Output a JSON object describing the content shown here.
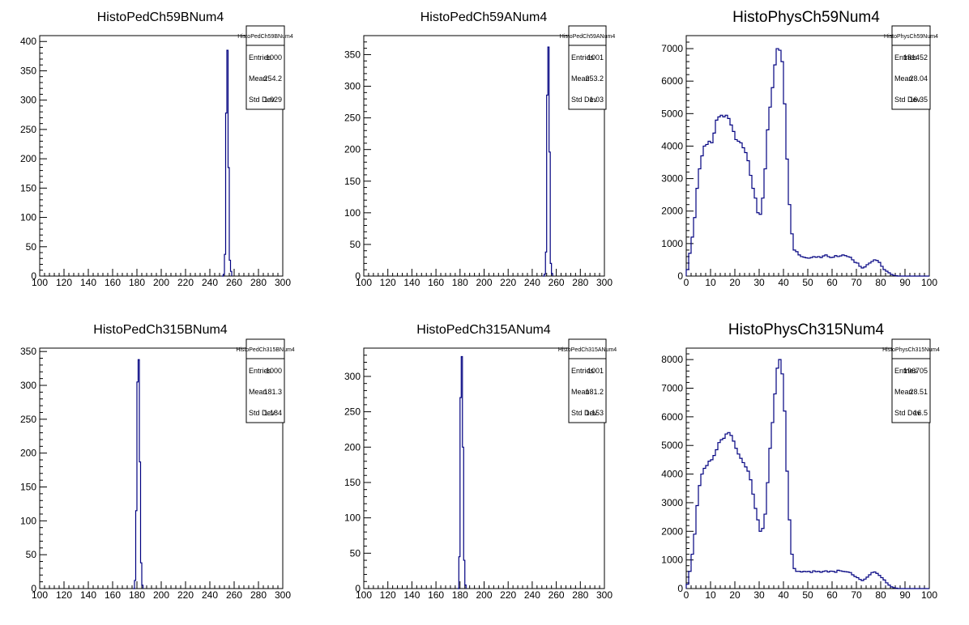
{
  "stats_labels": {
    "entries": "Entries",
    "mean": "Mean",
    "std": "Std Dev"
  },
  "colors": {
    "line": "#000080",
    "axis": "#000000"
  },
  "chart_data": [
    {
      "type": "histogram",
      "title": "HistoPedCh59BNum4",
      "stats": {
        "name": "HistoPedCh59BNum4",
        "entries": "1000",
        "mean": "254.2",
        "std": "1.029"
      },
      "xlim": [
        100,
        300
      ],
      "ylim": [
        0,
        410
      ],
      "xticks": [
        100,
        120,
        140,
        160,
        180,
        200,
        220,
        240,
        260,
        280,
        300
      ],
      "yticks": [
        0,
        50,
        100,
        150,
        200,
        250,
        300,
        350,
        400
      ],
      "bins": [
        [
          250,
          251,
          0
        ],
        [
          251,
          252,
          3
        ],
        [
          252,
          253,
          37
        ],
        [
          253,
          254,
          278
        ],
        [
          254,
          255,
          385
        ],
        [
          255,
          256,
          185
        ],
        [
          256,
          257,
          27
        ],
        [
          257,
          258,
          8
        ]
      ]
    },
    {
      "type": "histogram",
      "title": "HistoPedCh59ANum4",
      "stats": {
        "name": "HistoPedCh59ANum4",
        "entries": "1001",
        "mean": "253.2",
        "std": "1.03"
      },
      "xlim": [
        100,
        300
      ],
      "ylim": [
        0,
        380
      ],
      "xticks": [
        100,
        120,
        140,
        160,
        180,
        200,
        220,
        240,
        260,
        280,
        300
      ],
      "yticks": [
        0,
        50,
        100,
        150,
        200,
        250,
        300,
        350
      ],
      "bins": [
        [
          249,
          250,
          0
        ],
        [
          250,
          251,
          3
        ],
        [
          251,
          252,
          38
        ],
        [
          252,
          253,
          286
        ],
        [
          253,
          254,
          362
        ],
        [
          254,
          255,
          196
        ],
        [
          255,
          256,
          20
        ],
        [
          256,
          257,
          4
        ]
      ]
    },
    {
      "type": "histogram",
      "title": "HistoPhysCh59Num4",
      "stats": {
        "name": "HistoPhysCh59Num4",
        "entries": "181452",
        "mean": "28.04",
        "std": "16.35"
      },
      "xlim": [
        0,
        100
      ],
      "ylim": [
        0,
        7400
      ],
      "xticks": [
        0,
        10,
        20,
        30,
        40,
        50,
        60,
        70,
        80,
        90,
        100
      ],
      "yticks": [
        0,
        1000,
        2000,
        3000,
        4000,
        5000,
        6000,
        7000
      ],
      "binstart": 0,
      "binwidth": 1,
      "counts": [
        200,
        700,
        1200,
        1800,
        2700,
        3300,
        3700,
        4000,
        4050,
        4150,
        4100,
        4400,
        4800,
        4900,
        4950,
        4900,
        4950,
        4850,
        4650,
        4450,
        4200,
        4150,
        4100,
        3950,
        3800,
        3550,
        3100,
        2700,
        2400,
        1950,
        1900,
        2400,
        3300,
        4500,
        5200,
        5800,
        6500,
        7000,
        6950,
        6600,
        5300,
        3600,
        2200,
        1300,
        800,
        750,
        650,
        600,
        580,
        560,
        550,
        570,
        600,
        580,
        600,
        570,
        620,
        650,
        600,
        570,
        580,
        630,
        600,
        620,
        650,
        630,
        600,
        580,
        500,
        420,
        400,
        300,
        250,
        280,
        350,
        400,
        450,
        500,
        480,
        420,
        300,
        200,
        150,
        100,
        50,
        20,
        10,
        0,
        0,
        0,
        0,
        0,
        0,
        0,
        0,
        0,
        0,
        0,
        0,
        0
      ]
    },
    {
      "type": "histogram",
      "title": "HistoPedCh315BNum4",
      "stats": {
        "name": "HistoPedCh315BNum4",
        "entries": "1000",
        "mean": "181.3",
        "std": "1.184"
      },
      "xlim": [
        100,
        300
      ],
      "ylim": [
        0,
        355
      ],
      "xticks": [
        100,
        120,
        140,
        160,
        180,
        200,
        220,
        240,
        260,
        280,
        300
      ],
      "yticks": [
        0,
        50,
        100,
        150,
        200,
        250,
        300,
        350
      ],
      "bins": [
        [
          177,
          178,
          0
        ],
        [
          178,
          179,
          12
        ],
        [
          179,
          180,
          115
        ],
        [
          180,
          181,
          305
        ],
        [
          181,
          182,
          338
        ],
        [
          182,
          183,
          187
        ],
        [
          183,
          184,
          38
        ],
        [
          184,
          185,
          5
        ]
      ]
    },
    {
      "type": "histogram",
      "title": "HistoPedCh315ANum4",
      "stats": {
        "name": "HistoPedCh315ANum4",
        "entries": "1001",
        "mean": "181.2",
        "std": "1.153"
      },
      "xlim": [
        100,
        300
      ],
      "ylim": [
        0,
        340
      ],
      "xticks": [
        100,
        120,
        140,
        160,
        180,
        200,
        220,
        240,
        260,
        280,
        300
      ],
      "yticks": [
        0,
        50,
        100,
        150,
        200,
        250,
        300
      ],
      "bins": [
        [
          178,
          179,
          0
        ],
        [
          179,
          180,
          45
        ],
        [
          180,
          181,
          270
        ],
        [
          181,
          182,
          328
        ],
        [
          182,
          183,
          200
        ],
        [
          183,
          184,
          40
        ],
        [
          184,
          185,
          5
        ]
      ]
    },
    {
      "type": "histogram",
      "title": "HistoPhysCh315Num4",
      "stats": {
        "name": "HistoPhysCh315Num4",
        "entries": "196705",
        "mean": "28.51",
        "std": "16.5"
      },
      "xlim": [
        0,
        100
      ],
      "ylim": [
        0,
        8400
      ],
      "xticks": [
        0,
        10,
        20,
        30,
        40,
        50,
        60,
        70,
        80,
        90,
        100
      ],
      "yticks": [
        0,
        1000,
        2000,
        3000,
        4000,
        5000,
        6000,
        7000,
        8000
      ],
      "binstart": 0,
      "binwidth": 1,
      "counts": [
        150,
        600,
        1200,
        1900,
        2900,
        3600,
        4000,
        4200,
        4300,
        4450,
        4500,
        4650,
        4850,
        5100,
        5200,
        5250,
        5400,
        5450,
        5350,
        5150,
        4900,
        4700,
        4550,
        4400,
        4250,
        4100,
        3800,
        3300,
        2800,
        2400,
        2000,
        2100,
        2600,
        3700,
        4900,
        5800,
        6800,
        7700,
        8000,
        7500,
        6200,
        4100,
        2400,
        1200,
        700,
        600,
        600,
        580,
        600,
        590,
        600,
        560,
        620,
        590,
        600,
        570,
        600,
        620,
        580,
        610,
        600,
        570,
        640,
        620,
        600,
        590,
        580,
        560,
        480,
        420,
        380,
        320,
        280,
        330,
        400,
        480,
        560,
        580,
        530,
        460,
        380,
        300,
        200,
        120,
        60,
        30,
        15,
        0,
        0,
        0,
        0,
        0,
        0,
        0,
        0,
        0,
        0,
        0,
        0,
        0
      ]
    }
  ]
}
